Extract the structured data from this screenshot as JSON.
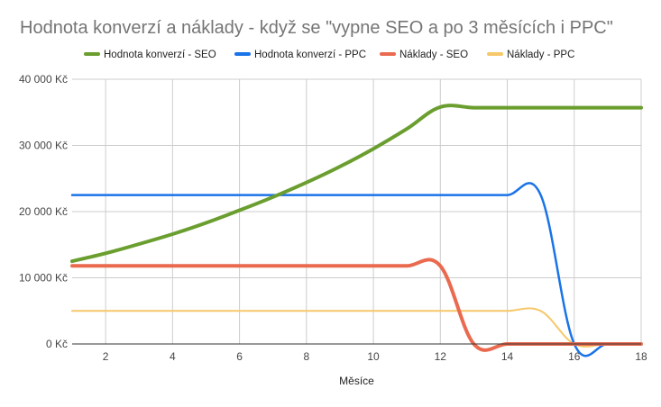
{
  "chart_data": {
    "type": "line",
    "title": "Hodnota konverzí a náklady - když se \"vypne SEO a po 3 měsících i PPC\"",
    "xlabel": "Měsíce",
    "ylabel": "",
    "xlim": [
      1,
      18
    ],
    "ylim": [
      0,
      40000
    ],
    "x_ticks": [
      2,
      4,
      6,
      8,
      10,
      12,
      14,
      16,
      18
    ],
    "y_ticks": [
      {
        "value": 0,
        "label": "0 Kč"
      },
      {
        "value": 10000,
        "label": "10 000 Kč"
      },
      {
        "value": 20000,
        "label": "20 000 Kč"
      },
      {
        "value": 30000,
        "label": "30 000 Kč"
      },
      {
        "value": 40000,
        "label": "40 000 Kč"
      }
    ],
    "grid": true,
    "legend_position": "top",
    "series": [
      {
        "name": "Hodnota konverzí - SEO",
        "color": "#6a9e2f",
        "x": [
          1,
          2,
          3,
          4,
          5,
          6,
          7,
          8,
          9,
          10,
          11,
          12,
          13,
          14,
          15,
          16,
          17,
          18
        ],
        "values": [
          12500,
          13700,
          15100,
          16600,
          18300,
          20200,
          22200,
          24400,
          26800,
          29500,
          32500,
          35800,
          35700,
          35700,
          35700,
          35700,
          35700,
          35700
        ]
      },
      {
        "name": "Hodnota konverzí - PPC",
        "color": "#1a73e8",
        "x": [
          1,
          2,
          3,
          4,
          5,
          6,
          7,
          8,
          9,
          10,
          11,
          12,
          13,
          14,
          15,
          16,
          17,
          18
        ],
        "values": [
          22500,
          22500,
          22500,
          22500,
          22500,
          22500,
          22500,
          22500,
          22500,
          22500,
          22500,
          22500,
          22500,
          22500,
          22500,
          0,
          0,
          0
        ]
      },
      {
        "name": "Náklady - SEO",
        "color": "#ea6a4f",
        "x": [
          1,
          2,
          3,
          4,
          5,
          6,
          7,
          8,
          9,
          10,
          11,
          12,
          13,
          14,
          15,
          16,
          17,
          18
        ],
        "values": [
          11800,
          11800,
          11800,
          11800,
          11800,
          11800,
          11800,
          11800,
          11800,
          11800,
          11800,
          11800,
          0,
          0,
          0,
          0,
          0,
          0
        ]
      },
      {
        "name": "Náklady - PPC",
        "color": "#f6c86a",
        "x": [
          1,
          2,
          3,
          4,
          5,
          6,
          7,
          8,
          9,
          10,
          11,
          12,
          13,
          14,
          15,
          16,
          17,
          18
        ],
        "values": [
          5000,
          5000,
          5000,
          5000,
          5000,
          5000,
          5000,
          5000,
          5000,
          5000,
          5000,
          5000,
          5000,
          5000,
          5000,
          0,
          0,
          0
        ]
      }
    ]
  }
}
